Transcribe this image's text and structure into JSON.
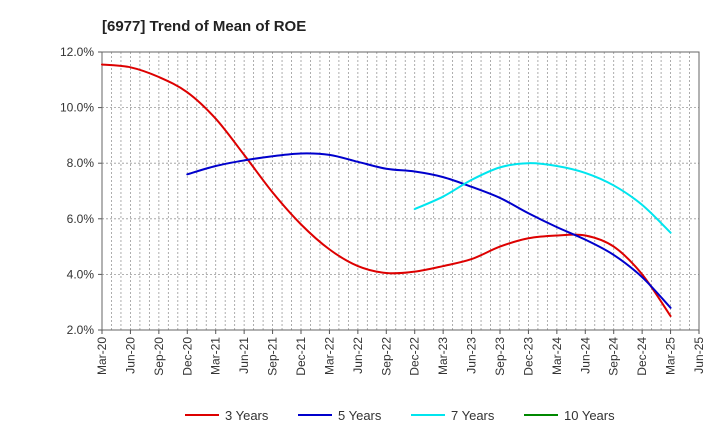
{
  "chart_data": {
    "type": "line",
    "title": "[6977]  Trend of Mean of ROE",
    "xlabel": "",
    "ylabel": "",
    "x_ticks": [
      "Mar-20",
      "Jun-20",
      "Sep-20",
      "Dec-20",
      "Mar-21",
      "Jun-21",
      "Sep-21",
      "Dec-21",
      "Mar-22",
      "Jun-22",
      "Sep-22",
      "Dec-22",
      "Mar-23",
      "Jun-23",
      "Sep-23",
      "Dec-23",
      "Mar-24",
      "Jun-24",
      "Sep-24",
      "Dec-24",
      "Mar-25",
      "Jun-25"
    ],
    "y_ticks": [
      "2.0%",
      "4.0%",
      "6.0%",
      "8.0%",
      "10.0%",
      "12.0%"
    ],
    "ylim": [
      2.0,
      12.0
    ],
    "grid": true,
    "legend_position": "bottom",
    "series": [
      {
        "name": "3 Years",
        "color": "#dd0000",
        "x": [
          "Mar-20",
          "Jun-20",
          "Sep-20",
          "Dec-20",
          "Mar-21",
          "Jun-21",
          "Sep-21",
          "Dec-21",
          "Mar-22",
          "Jun-22",
          "Sep-22",
          "Dec-22",
          "Mar-23",
          "Jun-23",
          "Sep-23",
          "Dec-23",
          "Mar-24",
          "Jun-24",
          "Sep-24",
          "Dec-24",
          "Mar-25"
        ],
        "values": [
          11.55,
          11.45,
          11.1,
          10.55,
          9.6,
          8.3,
          6.95,
          5.8,
          4.9,
          4.3,
          4.05,
          4.1,
          4.3,
          4.55,
          5.0,
          5.3,
          5.4,
          5.4,
          5.0,
          4.0,
          2.5
        ]
      },
      {
        "name": "5 Years",
        "color": "#0000cc",
        "x": [
          "Dec-20",
          "Mar-21",
          "Jun-21",
          "Sep-21",
          "Dec-21",
          "Mar-22",
          "Jun-22",
          "Sep-22",
          "Dec-22",
          "Mar-23",
          "Jun-23",
          "Sep-23",
          "Dec-23",
          "Mar-24",
          "Jun-24",
          "Sep-24",
          "Dec-24",
          "Mar-25"
        ],
        "values": [
          7.6,
          7.9,
          8.1,
          8.25,
          8.35,
          8.3,
          8.05,
          7.8,
          7.7,
          7.5,
          7.15,
          6.75,
          6.2,
          5.7,
          5.25,
          4.7,
          3.9,
          2.8
        ]
      },
      {
        "name": "7 Years",
        "color": "#00e5ee",
        "x": [
          "Dec-22",
          "Mar-23",
          "Jun-23",
          "Sep-23",
          "Dec-23",
          "Mar-24",
          "Jun-24",
          "Sep-24",
          "Dec-24",
          "Mar-25"
        ],
        "values": [
          6.35,
          6.8,
          7.4,
          7.85,
          8.0,
          7.9,
          7.65,
          7.2,
          6.5,
          5.5
        ]
      },
      {
        "name": "10 Years",
        "color": "#008800",
        "x": [],
        "values": []
      }
    ]
  }
}
